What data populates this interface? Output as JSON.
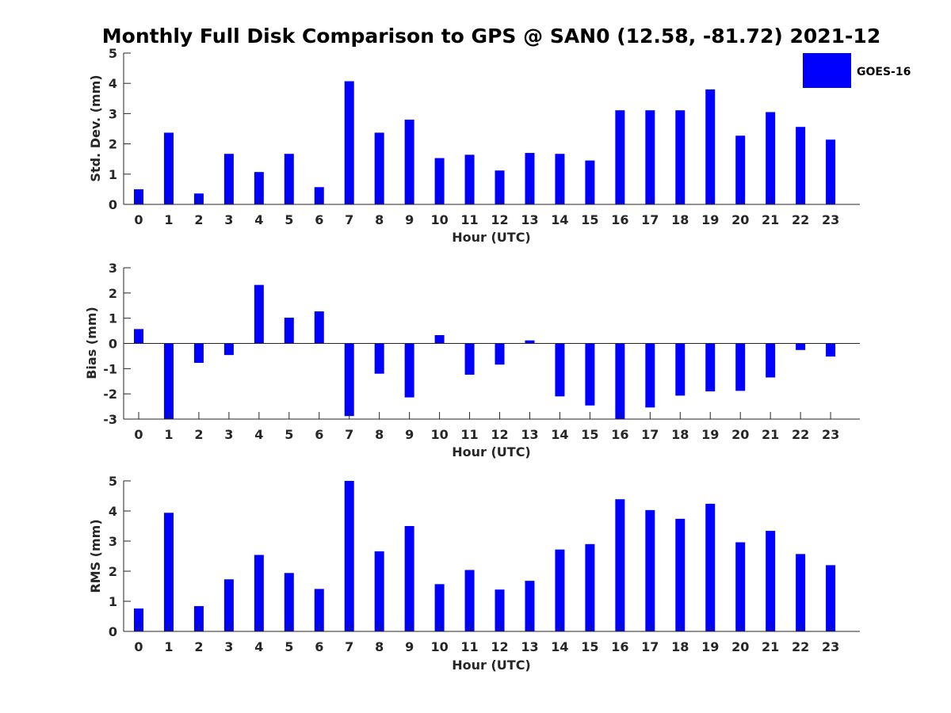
{
  "figure": {
    "title": "Monthly Full Disk Comparison to GPS @ SAN0 (12.58, -81.72) 2021-12",
    "legend_label": "GOES-16",
    "bar_color": "#0000ff"
  },
  "chart_data": [
    {
      "type": "bar",
      "categories": [
        "0",
        "1",
        "2",
        "3",
        "4",
        "5",
        "6",
        "7",
        "8",
        "9",
        "10",
        "11",
        "12",
        "13",
        "14",
        "15",
        "16",
        "17",
        "18",
        "19",
        "20",
        "21",
        "22",
        "23"
      ],
      "series": [
        {
          "name": "GOES-16",
          "values": [
            0.5,
            2.37,
            0.36,
            1.67,
            1.07,
            1.67,
            0.57,
            4.07,
            2.37,
            2.8,
            1.53,
            1.64,
            1.12,
            1.7,
            1.67,
            1.45,
            3.11,
            3.11,
            3.11,
            3.8,
            2.27,
            3.05,
            2.56,
            2.14
          ]
        }
      ],
      "xlabel": "Hour (UTC)",
      "ylabel": "Std. Dev. (mm)",
      "ylim": [
        0,
        5
      ],
      "yticks": [
        "0",
        "1",
        "2",
        "3",
        "4",
        "5"
      ],
      "grid": false,
      "legend_position": "top-right"
    },
    {
      "type": "bar",
      "categories": [
        "0",
        "1",
        "2",
        "3",
        "4",
        "5",
        "6",
        "7",
        "8",
        "9",
        "10",
        "11",
        "12",
        "13",
        "14",
        "15",
        "16",
        "17",
        "18",
        "19",
        "20",
        "21",
        "22",
        "23"
      ],
      "series": [
        {
          "name": "GOES-16",
          "values": [
            0.57,
            -3.0,
            -0.77,
            -0.46,
            2.32,
            1.02,
            1.27,
            -2.88,
            -1.2,
            -2.14,
            0.33,
            -1.24,
            -0.84,
            0.12,
            -2.1,
            -2.46,
            -3.0,
            -2.54,
            -2.07,
            -1.9,
            -1.88,
            -1.35,
            -0.26,
            -0.52
          ]
        }
      ],
      "xlabel": "Hour (UTC)",
      "ylabel": "Bias (mm)",
      "ylim": [
        -3,
        3
      ],
      "yticks": [
        "-3",
        "-2",
        "-1",
        "0",
        "1",
        "2",
        "3"
      ],
      "grid": false
    },
    {
      "type": "bar",
      "categories": [
        "0",
        "1",
        "2",
        "3",
        "4",
        "5",
        "6",
        "7",
        "8",
        "9",
        "10",
        "11",
        "12",
        "13",
        "14",
        "15",
        "16",
        "17",
        "18",
        "19",
        "20",
        "21",
        "22",
        "23"
      ],
      "series": [
        {
          "name": "GOES-16",
          "values": [
            0.76,
            3.94,
            0.84,
            1.73,
            2.54,
            1.94,
            1.41,
            5.0,
            2.66,
            3.5,
            1.57,
            2.04,
            1.39,
            1.68,
            2.72,
            2.9,
            4.39,
            4.03,
            3.74,
            4.24,
            2.96,
            3.34,
            2.57,
            2.2
          ]
        }
      ],
      "xlabel": "Hour (UTC)",
      "ylabel": "RMS (mm)",
      "ylim": [
        0,
        5
      ],
      "yticks": [
        "0",
        "1",
        "2",
        "3",
        "4",
        "5"
      ],
      "grid": false
    }
  ]
}
